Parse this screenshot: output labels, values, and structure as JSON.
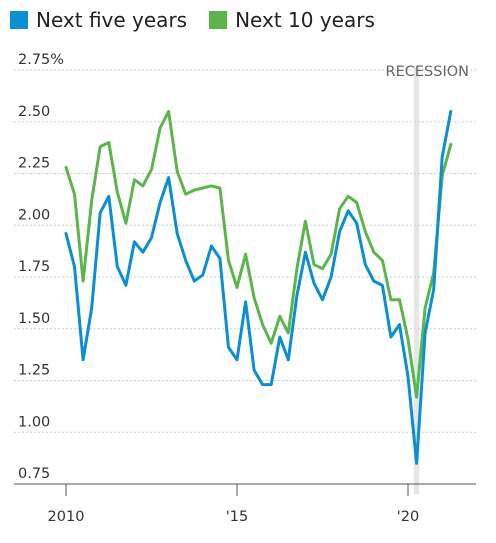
{
  "colors": {
    "five_year": "#0a8fd2",
    "ten_year": "#5cb54a",
    "recession": "#e6e6e6",
    "grid": "#d0d0d0"
  },
  "legend": [
    {
      "label": "Next five years",
      "color": "#0a8fd2"
    },
    {
      "label": "Next 10 years",
      "color": "#5cb54a"
    }
  ],
  "chart_data": {
    "type": "line",
    "title": "",
    "xlabel": "",
    "ylabel": "",
    "ylim": [
      0.75,
      2.75
    ],
    "xlim": [
      2010,
      2021.5
    ],
    "y_ticks": [
      {
        "value": 2.75,
        "label": "2.75%"
      },
      {
        "value": 2.5,
        "label": "2.50"
      },
      {
        "value": 2.25,
        "label": "2.25"
      },
      {
        "value": 2.0,
        "label": "2.00"
      },
      {
        "value": 1.75,
        "label": "1.75"
      },
      {
        "value": 1.5,
        "label": "1.50"
      },
      {
        "value": 1.25,
        "label": "1.25"
      },
      {
        "value": 1.0,
        "label": "1.00"
      },
      {
        "value": 0.75,
        "label": "0.75"
      }
    ],
    "x_ticks": [
      {
        "value": 2010,
        "label": "2010"
      },
      {
        "value": 2015,
        "label": "'15"
      },
      {
        "value": 2020,
        "label": "'20"
      }
    ],
    "recession": {
      "label": "RECESSION",
      "start": 2020.17,
      "end": 2020.33
    },
    "series": [
      {
        "name": "Next five years",
        "color": "#0a8fd2",
        "x": [
          2010.0,
          2010.25,
          2010.5,
          2010.75,
          2011.0,
          2011.25,
          2011.5,
          2011.75,
          2012.0,
          2012.25,
          2012.5,
          2012.75,
          2013.0,
          2013.25,
          2013.5,
          2013.75,
          2014.0,
          2014.25,
          2014.5,
          2014.75,
          2015.0,
          2015.25,
          2015.5,
          2015.75,
          2016.0,
          2016.25,
          2016.5,
          2016.75,
          2017.0,
          2017.25,
          2017.5,
          2017.75,
          2018.0,
          2018.25,
          2018.5,
          2018.75,
          2019.0,
          2019.25,
          2019.5,
          2019.75,
          2020.0,
          2020.25,
          2020.5,
          2020.75,
          2021.0,
          2021.25
        ],
        "values": [
          1.96,
          1.8,
          1.35,
          1.6,
          2.06,
          2.14,
          1.8,
          1.71,
          1.92,
          1.87,
          1.94,
          2.11,
          2.23,
          1.96,
          1.83,
          1.73,
          1.76,
          1.9,
          1.84,
          1.41,
          1.35,
          1.63,
          1.3,
          1.23,
          1.23,
          1.46,
          1.35,
          1.66,
          1.87,
          1.72,
          1.64,
          1.75,
          1.97,
          2.07,
          2.01,
          1.81,
          1.73,
          1.71,
          1.46,
          1.52,
          1.27,
          0.85,
          1.48,
          1.69,
          2.33,
          2.55
        ]
      },
      {
        "name": "Next 10 years",
        "color": "#5cb54a",
        "x": [
          2010.0,
          2010.25,
          2010.5,
          2010.75,
          2011.0,
          2011.25,
          2011.5,
          2011.75,
          2012.0,
          2012.25,
          2012.5,
          2012.75,
          2013.0,
          2013.25,
          2013.5,
          2013.75,
          2014.0,
          2014.25,
          2014.5,
          2014.75,
          2015.0,
          2015.25,
          2015.5,
          2015.75,
          2016.0,
          2016.25,
          2016.5,
          2016.75,
          2017.0,
          2017.25,
          2017.5,
          2017.75,
          2018.0,
          2018.25,
          2018.5,
          2018.75,
          2019.0,
          2019.25,
          2019.5,
          2019.75,
          2020.0,
          2020.25,
          2020.5,
          2020.75,
          2021.0,
          2021.25
        ],
        "values": [
          2.28,
          2.15,
          1.73,
          2.12,
          2.38,
          2.4,
          2.16,
          2.01,
          2.22,
          2.19,
          2.27,
          2.47,
          2.55,
          2.26,
          2.15,
          2.17,
          2.18,
          2.19,
          2.18,
          1.83,
          1.7,
          1.86,
          1.65,
          1.52,
          1.43,
          1.56,
          1.48,
          1.79,
          2.02,
          1.81,
          1.79,
          1.86,
          2.08,
          2.14,
          2.11,
          1.97,
          1.87,
          1.83,
          1.64,
          1.64,
          1.45,
          1.17,
          1.6,
          1.77,
          2.24,
          2.39
        ]
      }
    ]
  }
}
